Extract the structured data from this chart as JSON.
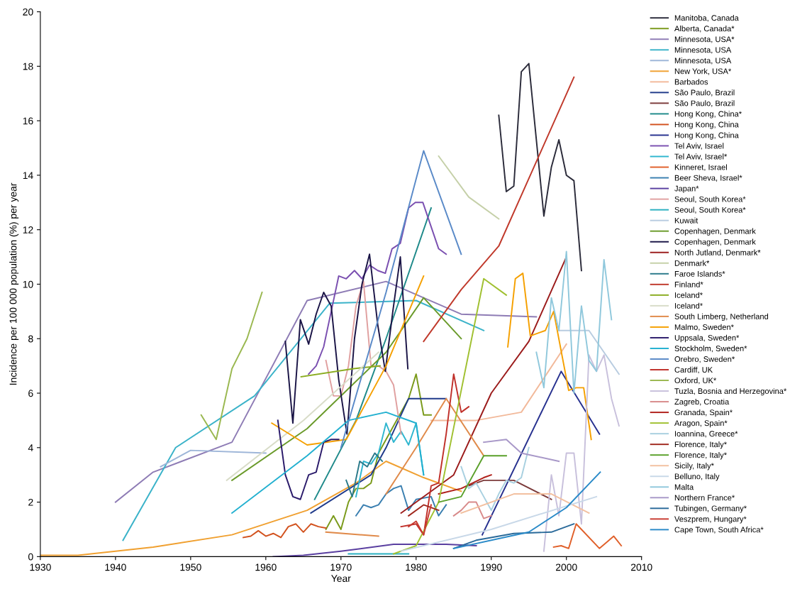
{
  "chart_data": {
    "type": "line",
    "xlabel": "Year",
    "ylabel": "Incidence per 100 000 population (%) per year",
    "xlim": [
      1930,
      2010
    ],
    "xticks": [
      1930,
      1940,
      1950,
      1960,
      1970,
      1980,
      1990,
      2000,
      2010
    ],
    "ylim": [
      0,
      20
    ],
    "yticks": [
      0,
      2,
      4,
      6,
      8,
      10,
      12,
      14,
      16,
      18,
      20
    ],
    "grid": false,
    "legend": "right",
    "series": [
      {
        "name": "Manitoba, Canada",
        "color": "#2b2b3a",
        "x": [
          1991,
          1992,
          1993,
          1994,
          1995,
          1997,
          1998,
          1999,
          2000,
          2001,
          2002
        ],
        "values": [
          16.2,
          13.4,
          13.6,
          17.8,
          18.1,
          12.5,
          14.3,
          15.3,
          14.0,
          13.8,
          10.5
        ]
      },
      {
        "name": "Alberta, Canada*",
        "color": "#7a9a1a",
        "x": [
          1968,
          1969,
          1970,
          1971,
          1972,
          1973,
          1974,
          1975,
          1979,
          1980,
          1981,
          1982
        ],
        "values": [
          1.0,
          1.5,
          1.0,
          2.0,
          2.5,
          2.5,
          2.7,
          3.8,
          5.8,
          6.7,
          5.2,
          5.2
        ]
      },
      {
        "name": "Minnesota, USA*",
        "color": "#8e7cb5",
        "x": [
          1940,
          1945,
          1955.5,
          1965.5,
          1976,
          1986,
          1996
        ],
        "values": [
          2.0,
          3.1,
          4.2,
          9.4,
          10.1,
          8.9,
          8.8
        ]
      },
      {
        "name": "Minnesota, USA",
        "color": "#3bb3c9",
        "x": [
          1941,
          1948,
          1958.5,
          1968.5,
          1980,
          1989
        ],
        "values": [
          0.6,
          4.0,
          5.9,
          9.3,
          9.4,
          8.3
        ]
      },
      {
        "name": "Minnesota, USA",
        "color": "#9db5d8",
        "x": [
          1946,
          1950,
          1960
        ],
        "values": [
          3.3,
          3.9,
          3.8
        ]
      },
      {
        "name": "New York, USA*",
        "color": "#f0a030",
        "x": [
          1930,
          1935,
          1945,
          1955.5,
          1965.5,
          1972,
          1976,
          1981,
          1986
        ],
        "values": [
          0.05,
          0.05,
          0.35,
          0.8,
          1.7,
          2.7,
          3.5,
          2.9,
          2.4
        ]
      },
      {
        "name": "Barbados",
        "color": "#f2b99a",
        "x": [
          1982,
          1988,
          1994,
          2000
        ],
        "values": [
          5.0,
          5.0,
          5.3,
          7.8
        ]
      },
      {
        "name": "São Paulo, Brazil",
        "color": "#1f3a8a",
        "x": [
          1966,
          1974,
          1976,
          1979,
          1984
        ],
        "values": [
          1.6,
          3.0,
          4.0,
          5.8,
          5.8
        ]
      },
      {
        "name": "São Paulo, Brazil",
        "color": "#7b3a3a",
        "x": [
          1987,
          1989,
          1993,
          1998
        ],
        "values": [
          2.6,
          2.8,
          2.8,
          2.1
        ]
      },
      {
        "name": "Hong Kong, China*",
        "color": "#1f8a8a",
        "x": [
          1966.5,
          1972,
          1976,
          1982
        ],
        "values": [
          2.1,
          5.0,
          8.0,
          12.8
        ]
      },
      {
        "name": "Hong Kong, China",
        "color": "#d2521e",
        "x": [
          1957,
          1958,
          1959,
          1960,
          1961,
          1962,
          1963,
          1964,
          1965,
          1966,
          1967,
          1968
        ],
        "values": [
          0.7,
          0.75,
          0.95,
          0.75,
          0.85,
          0.7,
          1.1,
          1.2,
          0.9,
          1.2,
          1.1,
          1.05
        ]
      },
      {
        "name": "Hong Kong, China",
        "color": "#27318f",
        "x": [
          1988.8,
          1999.3,
          2004.4
        ],
        "values": [
          0.8,
          6.8,
          4.5
        ]
      },
      {
        "name": "Tel Aviv, Israel",
        "color": "#7a4fb0",
        "x": [
          1965.7,
          1966.7,
          1967.7,
          1968.7,
          1969.7,
          1970.7,
          1971.8,
          1972.8,
          1973.8,
          1974.9,
          1975.9,
          1976.8,
          1977.9,
          1979,
          1979.9,
          1980.9,
          1983,
          1984
        ],
        "values": [
          6.7,
          7.0,
          7.7,
          9.0,
          10.3,
          10.2,
          10.5,
          10.2,
          10.7,
          10.5,
          10.4,
          11.3,
          11.5,
          12.8,
          13.0,
          13.0,
          11.3,
          11.1
        ]
      },
      {
        "name": "Tel Aviv, Israel*",
        "color": "#2fb6cf",
        "x": [
          1972,
          1973,
          1974,
          1975,
          1976,
          1977,
          1978,
          1979,
          1980,
          1981
        ],
        "values": [
          2.2,
          3.5,
          3.4,
          3.8,
          4.9,
          4.2,
          4.6,
          4.1,
          4.9,
          3.0
        ]
      },
      {
        "name": "Kinneret, Israel",
        "color": "#e0602a",
        "x": [
          1998.3,
          1999.3,
          2000.3,
          2001.3,
          2004.4,
          2006.3,
          2007.3
        ],
        "values": [
          0.35,
          0.4,
          0.3,
          1.2,
          0.3,
          0.75,
          0.4
        ]
      },
      {
        "name": "Beer Sheva, Israel*",
        "color": "#3a7fb0",
        "x": [
          1972,
          1973,
          1974,
          1975,
          1976,
          1977,
          1978,
          1979,
          1980,
          1982,
          1983,
          1984
        ],
        "values": [
          1.5,
          1.9,
          1.8,
          1.9,
          2.3,
          2.5,
          2.6,
          1.7,
          2.1,
          2.2,
          1.5,
          1.9
        ]
      },
      {
        "name": "Japan*",
        "color": "#5a3fa0",
        "x": [
          1961,
          1965,
          1970,
          1977,
          1984,
          1988
        ],
        "values": [
          0.0,
          0.05,
          0.2,
          0.45,
          0.45,
          0.4
        ]
      },
      {
        "name": "Seoul, South Korea*",
        "color": "#e0a0a0",
        "x": [
          1968,
          1969,
          1970,
          1971,
          1972,
          1973,
          1974,
          1975,
          1976,
          1977,
          1978
        ],
        "values": [
          7.2,
          5.9,
          5.9,
          7.0,
          9.2,
          10.1,
          7.0,
          7.0,
          6.8,
          6.3,
          4.5
        ]
      },
      {
        "name": "Seoul, South Korea*",
        "color": "#2ab0c0",
        "x": [
          1971,
          1979
        ],
        "values": [
          0.1,
          0.1
        ]
      },
      {
        "name": "Kuwait",
        "color": "#b8cce0",
        "x": [
          1999,
          2003,
          2007
        ],
        "values": [
          8.3,
          8.3,
          6.7
        ]
      },
      {
        "name": "Copenhagen, Denmark",
        "color": "#6a9a2a",
        "x": [
          1955.5,
          1965.5,
          1976,
          1981,
          1986
        ],
        "values": [
          2.8,
          4.7,
          7.5,
          9.5,
          8.0
        ]
      },
      {
        "name": "Copenhagen, Denmark",
        "color": "#1a1446",
        "x": [
          1962.6,
          1963.6,
          1964.6,
          1965.7,
          1966.7,
          1967.7,
          1968.7,
          1969.7,
          1970.8,
          1971.8,
          1972.8,
          1973.8,
          1974.9,
          1975.9,
          1976.9,
          1977.9,
          1978.9
        ],
        "values": [
          7.9,
          4.9,
          8.7,
          7.8,
          8.9,
          9.7,
          9.2,
          6.5,
          4.5,
          8.0,
          10.0,
          11.1,
          8.5,
          6.8,
          9.0,
          11.0,
          6.9
        ]
      },
      {
        "name": "North Jutland, Denmark*",
        "color": "#9b1b1b",
        "x": [
          1978,
          1985,
          1990,
          1995,
          2000
        ],
        "values": [
          1.6,
          3.0,
          6.0,
          7.9,
          11.0
        ]
      },
      {
        "name": "Denmark*",
        "color": "#c5d0a8",
        "x": [
          1983,
          1987,
          1991
        ],
        "values": [
          14.7,
          13.2,
          12.4
        ]
      },
      {
        "name": "Faroe Islands*",
        "color": "#2a7a8a",
        "x": [
          1970.7,
          1971.5,
          1972.5,
          1973.5,
          1974.5,
          1975.5
        ],
        "values": [
          2.8,
          2.2,
          3.5,
          3.3,
          3.8,
          3.5
        ]
      },
      {
        "name": "Finland*",
        "color": "#c0392b",
        "x": [
          1981,
          1986,
          1991,
          2001
        ],
        "values": [
          7.9,
          9.8,
          11.4,
          17.6
        ]
      },
      {
        "name": "Iceland*",
        "color": "#8aac20",
        "x": [
          1964.7,
          1971.7,
          1975.2
        ],
        "values": [
          6.6,
          6.9,
          7.0
        ]
      },
      {
        "name": "Iceland*",
        "color": "#d8dcc8",
        "x": [
          1954.8,
          1965,
          1975
        ],
        "values": [
          2.8,
          5.0,
          7.5
        ]
      },
      {
        "name": "South Limberg, Netherland",
        "color": "#e08a4a",
        "x": [
          1968,
          1975,
          1975.5,
          1976,
          1980,
          1984,
          1989
        ],
        "values": [
          0.9,
          0.75,
          null,
          2.3,
          4.0,
          5.8,
          3.7
        ]
      },
      {
        "name": "Malmo, Sweden*",
        "color": "#f5a000",
        "x": [
          1960.8,
          1965.5,
          1970.7,
          1976,
          1981,
          1986,
          1992.2,
          1993.2,
          1994.2,
          1995.2,
          1997.2,
          1998.3,
          2000.3,
          2001.3,
          2002.3,
          2003.3
        ],
        "values": [
          4.9,
          4.1,
          4.3,
          7.0,
          10.3,
          null,
          7.7,
          10.2,
          10.4,
          8.1,
          8.3,
          9.0,
          6.1,
          6.2,
          6.2,
          4.3
        ]
      },
      {
        "name": "Uppsala, Sweden*",
        "color": "#2a1a6a",
        "x": [
          1961.6,
          1962.6,
          1963.6,
          1964.6,
          1965.7,
          1966.7,
          1967.7,
          1968.7,
          1969.7
        ],
        "values": [
          5.0,
          3.0,
          2.2,
          2.1,
          3.0,
          3.1,
          4.2,
          4.3,
          4.3
        ]
      },
      {
        "name": "Stockholm, Sweden*",
        "color": "#22b0d0",
        "x": [
          1955.5,
          1965.5,
          1971,
          1976,
          1980,
          1981
        ],
        "values": [
          1.6,
          3.7,
          5.0,
          5.3,
          4.9,
          3.0
        ]
      },
      {
        "name": "Orebro, Sweden*",
        "color": "#5a8ac8",
        "x": [
          1970,
          1976,
          1981,
          1986
        ],
        "values": [
          4.0,
          9.7,
          14.9,
          11.1
        ]
      },
      {
        "name": "Cardiff, UK",
        "color": "#c0302a",
        "x": [
          1978,
          1980,
          1981,
          1982,
          1983,
          1984,
          1985,
          1986,
          1987
        ],
        "values": [
          1.1,
          1.2,
          0.8,
          2.6,
          2.7,
          4.5,
          6.7,
          5.3,
          5.5
        ]
      },
      {
        "name": "Oxford, UK*",
        "color": "#9ab850",
        "x": [
          1951.4,
          1953.4,
          1955.5,
          1957.5,
          1959.5
        ],
        "values": [
          5.2,
          4.3,
          6.9,
          8.0,
          9.7
        ]
      },
      {
        "name": "Tuzla, Bosnia and Herzegovina*",
        "color": "#c8c0dc",
        "x": [
          1997,
          1998,
          1999,
          2000,
          2001,
          2002,
          2003,
          2004,
          2005,
          2006,
          2007
        ],
        "values": [
          0.2,
          3.0,
          1.5,
          3.8,
          3.8,
          1.2,
          7.4,
          6.8,
          7.4,
          5.8,
          4.8
        ]
      },
      {
        "name": "Zagreb, Croatia",
        "color": "#d88a8a",
        "x": [
          1985,
          1986,
          1987,
          1988,
          1989,
          1990
        ],
        "values": [
          1.5,
          1.7,
          2.0,
          2.0,
          1.4,
          1.5
        ]
      },
      {
        "name": "Granada, Spain*",
        "color": "#b0201a",
        "x": [
          1983,
          1986,
          1989,
          1990
        ],
        "values": [
          2.3,
          2.5,
          2.9,
          3.0
        ]
      },
      {
        "name": "Aragon, Spain*",
        "color": "#a0c030",
        "x": [
          1977,
          1980,
          1983,
          1989,
          1992
        ],
        "values": [
          0.1,
          0.4,
          2.0,
          10.2,
          9.6
        ]
      },
      {
        "name": "Ioannina, Greece*",
        "color": "#a8d0e0",
        "x": [
          1986,
          1987,
          1988,
          1989,
          1990,
          1991,
          1992,
          1993,
          1994,
          1995
        ],
        "values": [
          3.3,
          2.5,
          2.7,
          2.2,
          1.7,
          2.3,
          2.8,
          2.7,
          2.9,
          4.0
        ]
      },
      {
        "name": "Florence, Italy*",
        "color": "#a0281e",
        "x": [
          1979,
          1981,
          1983
        ],
        "values": [
          1.5,
          1.9,
          1.7
        ]
      },
      {
        "name": "Florence, Italy*",
        "color": "#5aa02a",
        "x": [
          1983,
          1986,
          1989,
          1992
        ],
        "values": [
          2.0,
          2.2,
          3.7,
          3.7
        ]
      },
      {
        "name": "Sicily, Italy*",
        "color": "#f2c0a0",
        "x": [
          1986,
          1993,
          1998,
          2003
        ],
        "values": [
          1.6,
          2.3,
          2.3,
          1.6
        ]
      },
      {
        "name": "Belluno, Italy",
        "color": "#c8d8e8",
        "x": [
          1978,
          1990,
          2004
        ],
        "values": [
          0.2,
          1.0,
          2.2
        ]
      },
      {
        "name": "Malta",
        "color": "#90c8dc",
        "x": [
          1996,
          1997,
          1998,
          1999,
          2000,
          2001,
          2002,
          2003,
          2004,
          2005,
          2006
        ],
        "values": [
          7.5,
          6.2,
          9.5,
          8.3,
          11.2,
          6.0,
          9.2,
          7.2,
          6.8,
          10.9,
          8.7
        ]
      },
      {
        "name": "Northern France*",
        "color": "#a898c8",
        "x": [
          1989,
          1992,
          1994,
          1999
        ],
        "values": [
          4.2,
          4.3,
          3.8,
          3.5
        ]
      },
      {
        "name": "Tubingen, Germany*",
        "color": "#2a6a9a",
        "x": [
          1985,
          1988,
          1993,
          1998,
          2001
        ],
        "values": [
          0.3,
          0.6,
          0.85,
          0.9,
          1.2
        ]
      },
      {
        "name": "Veszprem, Hungary*",
        "color": "#c83a30",
        "x": [
          1979,
          1980,
          1981,
          1982
        ],
        "values": [
          1.1,
          1.3,
          0.8,
          1.9
        ]
      },
      {
        "name": "Cape Town, South Africa*",
        "color": "#2a8ac8",
        "x": [
          1985,
          1995,
          2000,
          2004.5
        ],
        "values": [
          0.3,
          0.9,
          1.8,
          3.1
        ]
      }
    ]
  }
}
